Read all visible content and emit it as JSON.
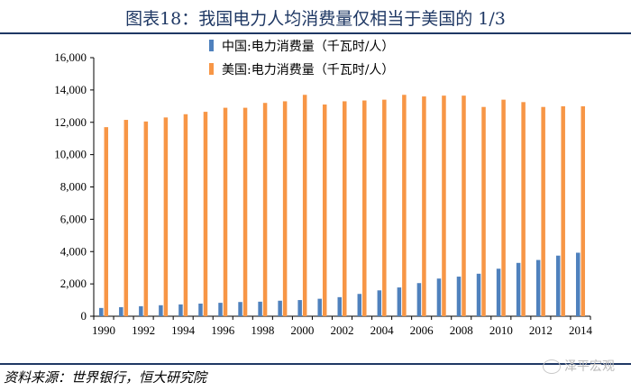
{
  "header": {
    "title": "图表18：我国电力人均消费量仅相当于美国的 1/3"
  },
  "footer": {
    "source": "资料来源：世界银行，恒大研究院",
    "watermark": "泽平宏观"
  },
  "chart_data": {
    "type": "bar",
    "title": "图表18：我国电力人均消费量仅相当于美国的 1/3",
    "categories": [
      "1990",
      "1991",
      "1992",
      "1993",
      "1994",
      "1995",
      "1996",
      "1997",
      "1998",
      "1999",
      "2000",
      "2001",
      "2002",
      "2003",
      "2004",
      "2005",
      "2006",
      "2007",
      "2008",
      "2009",
      "2010",
      "2011",
      "2012",
      "2013",
      "2014"
    ],
    "x_tick_labels": [
      "1990",
      "1992",
      "1994",
      "1996",
      "1998",
      "2000",
      "2002",
      "2004",
      "2006",
      "2008",
      "2010",
      "2012",
      "2014"
    ],
    "y_tick_labels": [
      "0",
      "2,000",
      "4,000",
      "6,000",
      "8,000",
      "10,000",
      "12,000",
      "14,000",
      "16,000"
    ],
    "ylim": [
      0,
      16000
    ],
    "grid": false,
    "legend_position": "top-center",
    "series": [
      {
        "name": "中国:电力消费量（千瓦时/人）",
        "color": "#4f81bd",
        "values": [
          510,
          560,
          620,
          680,
          730,
          780,
          830,
          880,
          900,
          960,
          1000,
          1080,
          1180,
          1380,
          1600,
          1780,
          2050,
          2330,
          2450,
          2630,
          2940,
          3300,
          3480,
          3750,
          3930
        ]
      },
      {
        "name": "美国:电力消费量（千瓦时/人）",
        "color": "#f79646",
        "values": [
          11700,
          12150,
          12050,
          12300,
          12500,
          12650,
          12900,
          12900,
          13200,
          13300,
          13700,
          13100,
          13300,
          13350,
          13400,
          13700,
          13600,
          13650,
          13650,
          12950,
          13400,
          13250,
          12950,
          12990,
          12990
        ]
      }
    ]
  }
}
